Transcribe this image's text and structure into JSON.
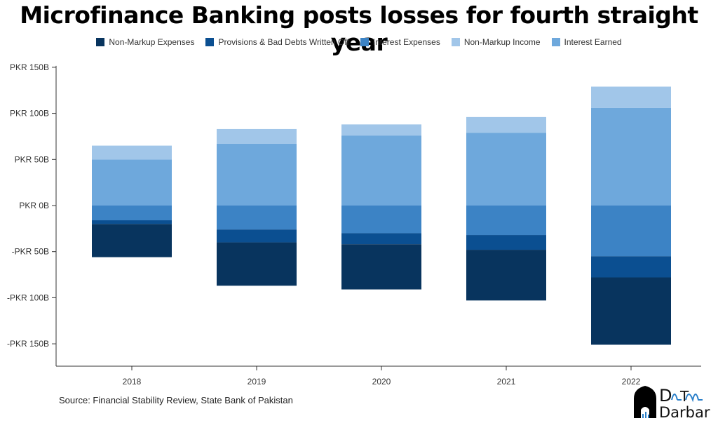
{
  "chart_data": {
    "type": "bar",
    "stacked": true,
    "title": "Microfinance Banking posts losses for fourth straight year",
    "categories": [
      "2018",
      "2019",
      "2020",
      "2021",
      "2022"
    ],
    "unit": "PKR billion",
    "ylim": [
      -150,
      150
    ],
    "yticks": [
      150,
      100,
      50,
      0,
      -50,
      -100,
      -150
    ],
    "ytick_labels": [
      "PKR 150B",
      "PKR 100B",
      "PKR 50B",
      "PKR 0B",
      "-PKR 50B",
      "-PKR 100B",
      "-PKR 150B"
    ],
    "legend_position": "top",
    "series": [
      {
        "name": "Non-Markup Expenses",
        "color": "#08345e",
        "values": [
          -36,
          -47,
          -49,
          -55,
          -73
        ]
      },
      {
        "name": "Provisions & Bad Debts Written Off",
        "color": "#0b4f91",
        "values": [
          -4,
          -14,
          -12,
          -16,
          -23
        ]
      },
      {
        "name": "Interest Expenses",
        "color": "#3c83c5",
        "values": [
          -16,
          -26,
          -30,
          -32,
          -55
        ]
      },
      {
        "name": "Non-Markup Income",
        "color": "#a1c6e9",
        "values": [
          15,
          16,
          12,
          17,
          23
        ]
      },
      {
        "name": "Interest Earned",
        "color": "#6ea8dc",
        "values": [
          50,
          67,
          76,
          79,
          106
        ]
      }
    ]
  },
  "source": "Source: Financial Stability Review, State Bank of Pakistan",
  "logo": {
    "text_top": "DaTa",
    "text_bottom": "Darbar"
  }
}
